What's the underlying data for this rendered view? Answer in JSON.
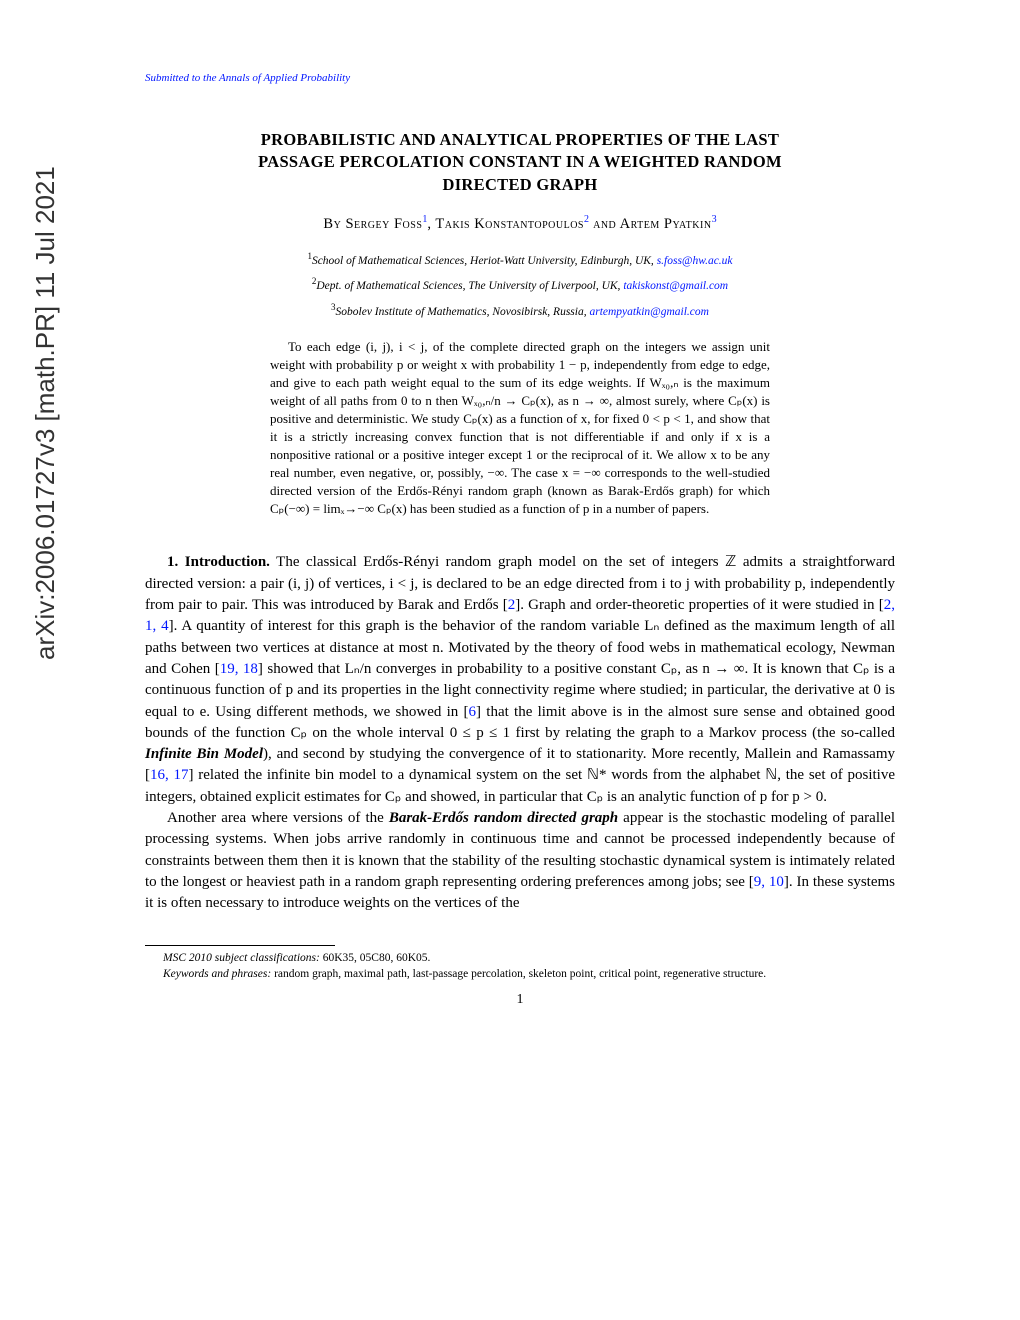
{
  "arxiv_id": "arXiv:2006.01727v3  [math.PR]  11 Jul 2021",
  "journal": "Submitted to the Annals of Applied Probability",
  "title_line1": "PROBABILISTIC AND ANALYTICAL PROPERTIES OF THE LAST",
  "title_line2": "PASSAGE PERCOLATION CONSTANT IN A WEIGHTED RANDOM",
  "title_line3": "DIRECTED GRAPH",
  "authors": {
    "by": "By ",
    "a1": "Sergey Foss",
    "a2": "Takis Konstantopoulos",
    "a3": "Artem Pyatkin",
    "and": " and "
  },
  "affiliations": {
    "aff1": "School of Mathematical Sciences, Heriot-Watt University, Edinburgh, UK,",
    "email1": "s.foss@hw.ac.uk",
    "aff2": "Dept. of Mathematical Sciences, The University of Liverpool, UK,",
    "email2": "takiskonst@gmail.com",
    "aff3": "Sobolev Institute of Mathematics, Novosibirsk, Russia,",
    "email3": "artempyatkin@gmail.com"
  },
  "abstract": "To each edge (i, j), i < j, of the complete directed graph on the integers we assign unit weight with probability p or weight x with probability 1 − p, independently from edge to edge, and give to each path weight equal to the sum of its edge weights. If Wₓ₀,ₙ is the maximum weight of all paths from 0 to n then Wₓ₀,ₙ/n → Cₚ(x), as n → ∞, almost surely, where Cₚ(x) is positive and deterministic. We study Cₚ(x) as a function of x, for fixed 0 < p < 1, and show that it is a strictly increasing convex function that is not differentiable if and only if x is a nonpositive rational or a positive integer except 1 or the reciprocal of it. We allow x to be any real number, even negative, or, possibly, −∞. The case x = −∞ corresponds to the well-studied directed version of the Erdős-Rényi random graph (known as Barak-Erdős graph) for which Cₚ(−∞) = limₓ→−∞ Cₚ(x) has been studied as a function of p in a number of papers.",
  "body": {
    "section_num": "1. Introduction.",
    "p1": " The classical Erdős-Rényi random graph model on the set of integers ℤ admits a straightforward directed version: a pair (i, j) of vertices, i < j, is declared to be an edge directed from i to j with probability p, independently from pair to pair. This was introduced by Barak and Erdős [",
    "p1b": "]. Graph and order-theoretic properties of it were studied in [",
    "p1c": "]. A quantity of interest for this graph is the behavior of the random variable Lₙ defined as the maximum length of all paths between two vertices at distance at most n. Motivated by the theory of food webs in mathematical ecology, Newman and Cohen [",
    "p1d": "] showed that Lₙ/n converges in probability to a positive constant Cₚ, as n → ∞. It is known that Cₚ is a continuous function of p and its properties in the light connectivity regime where studied; in particular, the derivative at 0 is equal to e. Using different methods, we showed in [",
    "p1e": "] that the limit above is in the almost sure sense and obtained good bounds of the function Cₚ on the whole interval 0 ≤ p ≤ 1 first by relating the graph to a Markov process (the so-called ",
    "ibm": "Infinite Bin Model",
    "p1f": "), and second by studying the convergence of it to stationarity. More recently, Mallein and Ramassamy [",
    "p1g": "] related the infinite bin model to a dynamical system on the set ℕ* words from the alphabet ℕ, the set of positive integers, obtained explicit estimates for Cₚ and showed, in particular that Cₚ is an analytic function of p for p > 0.",
    "p2a": "Another area where versions of the ",
    "berdg": "Barak-Erdős random directed graph",
    "p2b": " appear is the stochastic modeling of parallel processing systems. When jobs arrive randomly in continuous time and cannot be processed independently because of constraints between them then it is known that the stability of the resulting stochastic dynamical system is intimately related to the longest or heaviest path in a random graph representing ordering preferences among jobs; see [",
    "p2c": "]. In these systems it is often necessary to introduce weights on the vertices of the"
  },
  "citations": {
    "c2": "2",
    "c214": "2, 1, 4",
    "c1918": "19, 18",
    "c6": "6",
    "c1617": "16, 17",
    "c910": "9, 10"
  },
  "footnotes": {
    "msc_label": "MSC 2010 subject classifications:",
    "msc": " 60K35, 05C80, 60K05.",
    "kw_label": "Keywords and phrases:",
    "kw": " random graph, maximal path, last-passage percolation, skeleton point, critical point, regenerative structure."
  },
  "page_number": "1"
}
